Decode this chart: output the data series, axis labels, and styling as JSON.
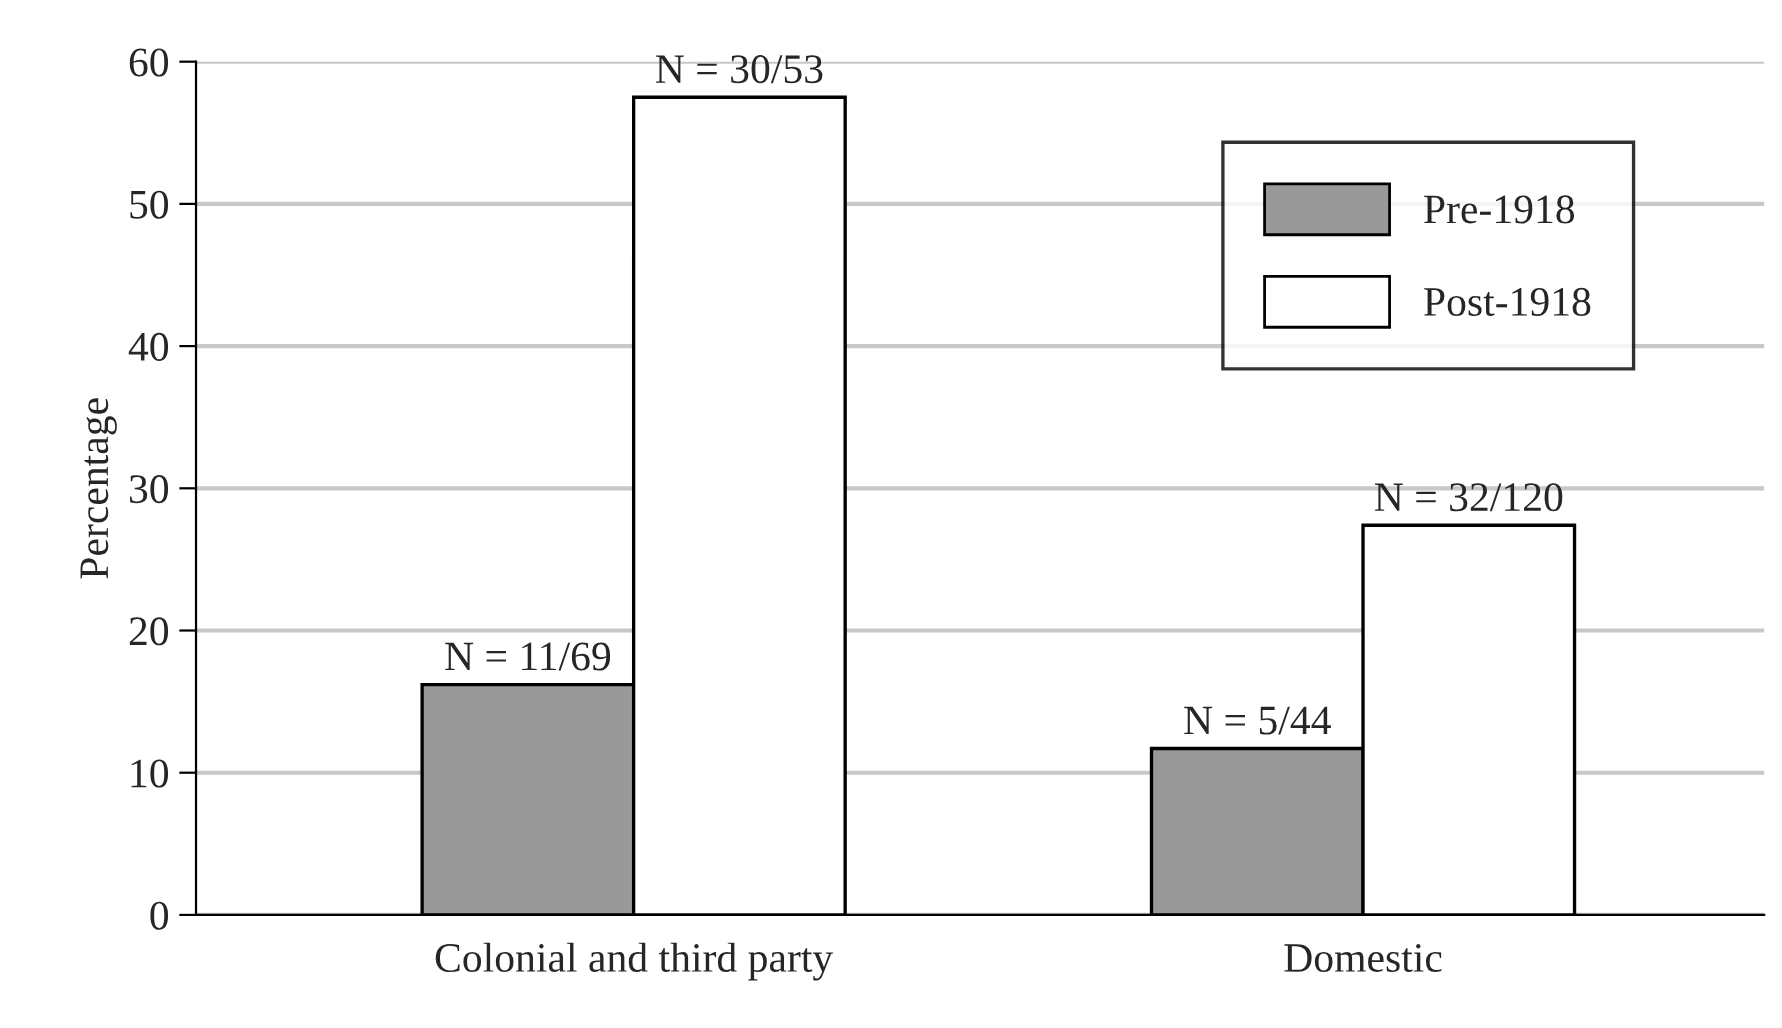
{
  "chart_data": {
    "type": "bar",
    "ylabel": "Percentage",
    "categories": [
      "Colonial and third party",
      "Domestic"
    ],
    "series": [
      {
        "name": "Pre-1918",
        "color": "#999999",
        "values": [
          16.2,
          11.7
        ],
        "value_labels": [
          "N = 11/69",
          "N = 5/44"
        ]
      },
      {
        "name": "Post-1918",
        "color": "#ffffff",
        "values": [
          57.5,
          27.4
        ],
        "value_labels": [
          "N = 30/53",
          "N = 32/120"
        ]
      }
    ],
    "ylim": [
      0,
      60
    ],
    "yticks": [
      0,
      10,
      20,
      30,
      40,
      50,
      60
    ],
    "grid": "y",
    "legend": "top right"
  }
}
